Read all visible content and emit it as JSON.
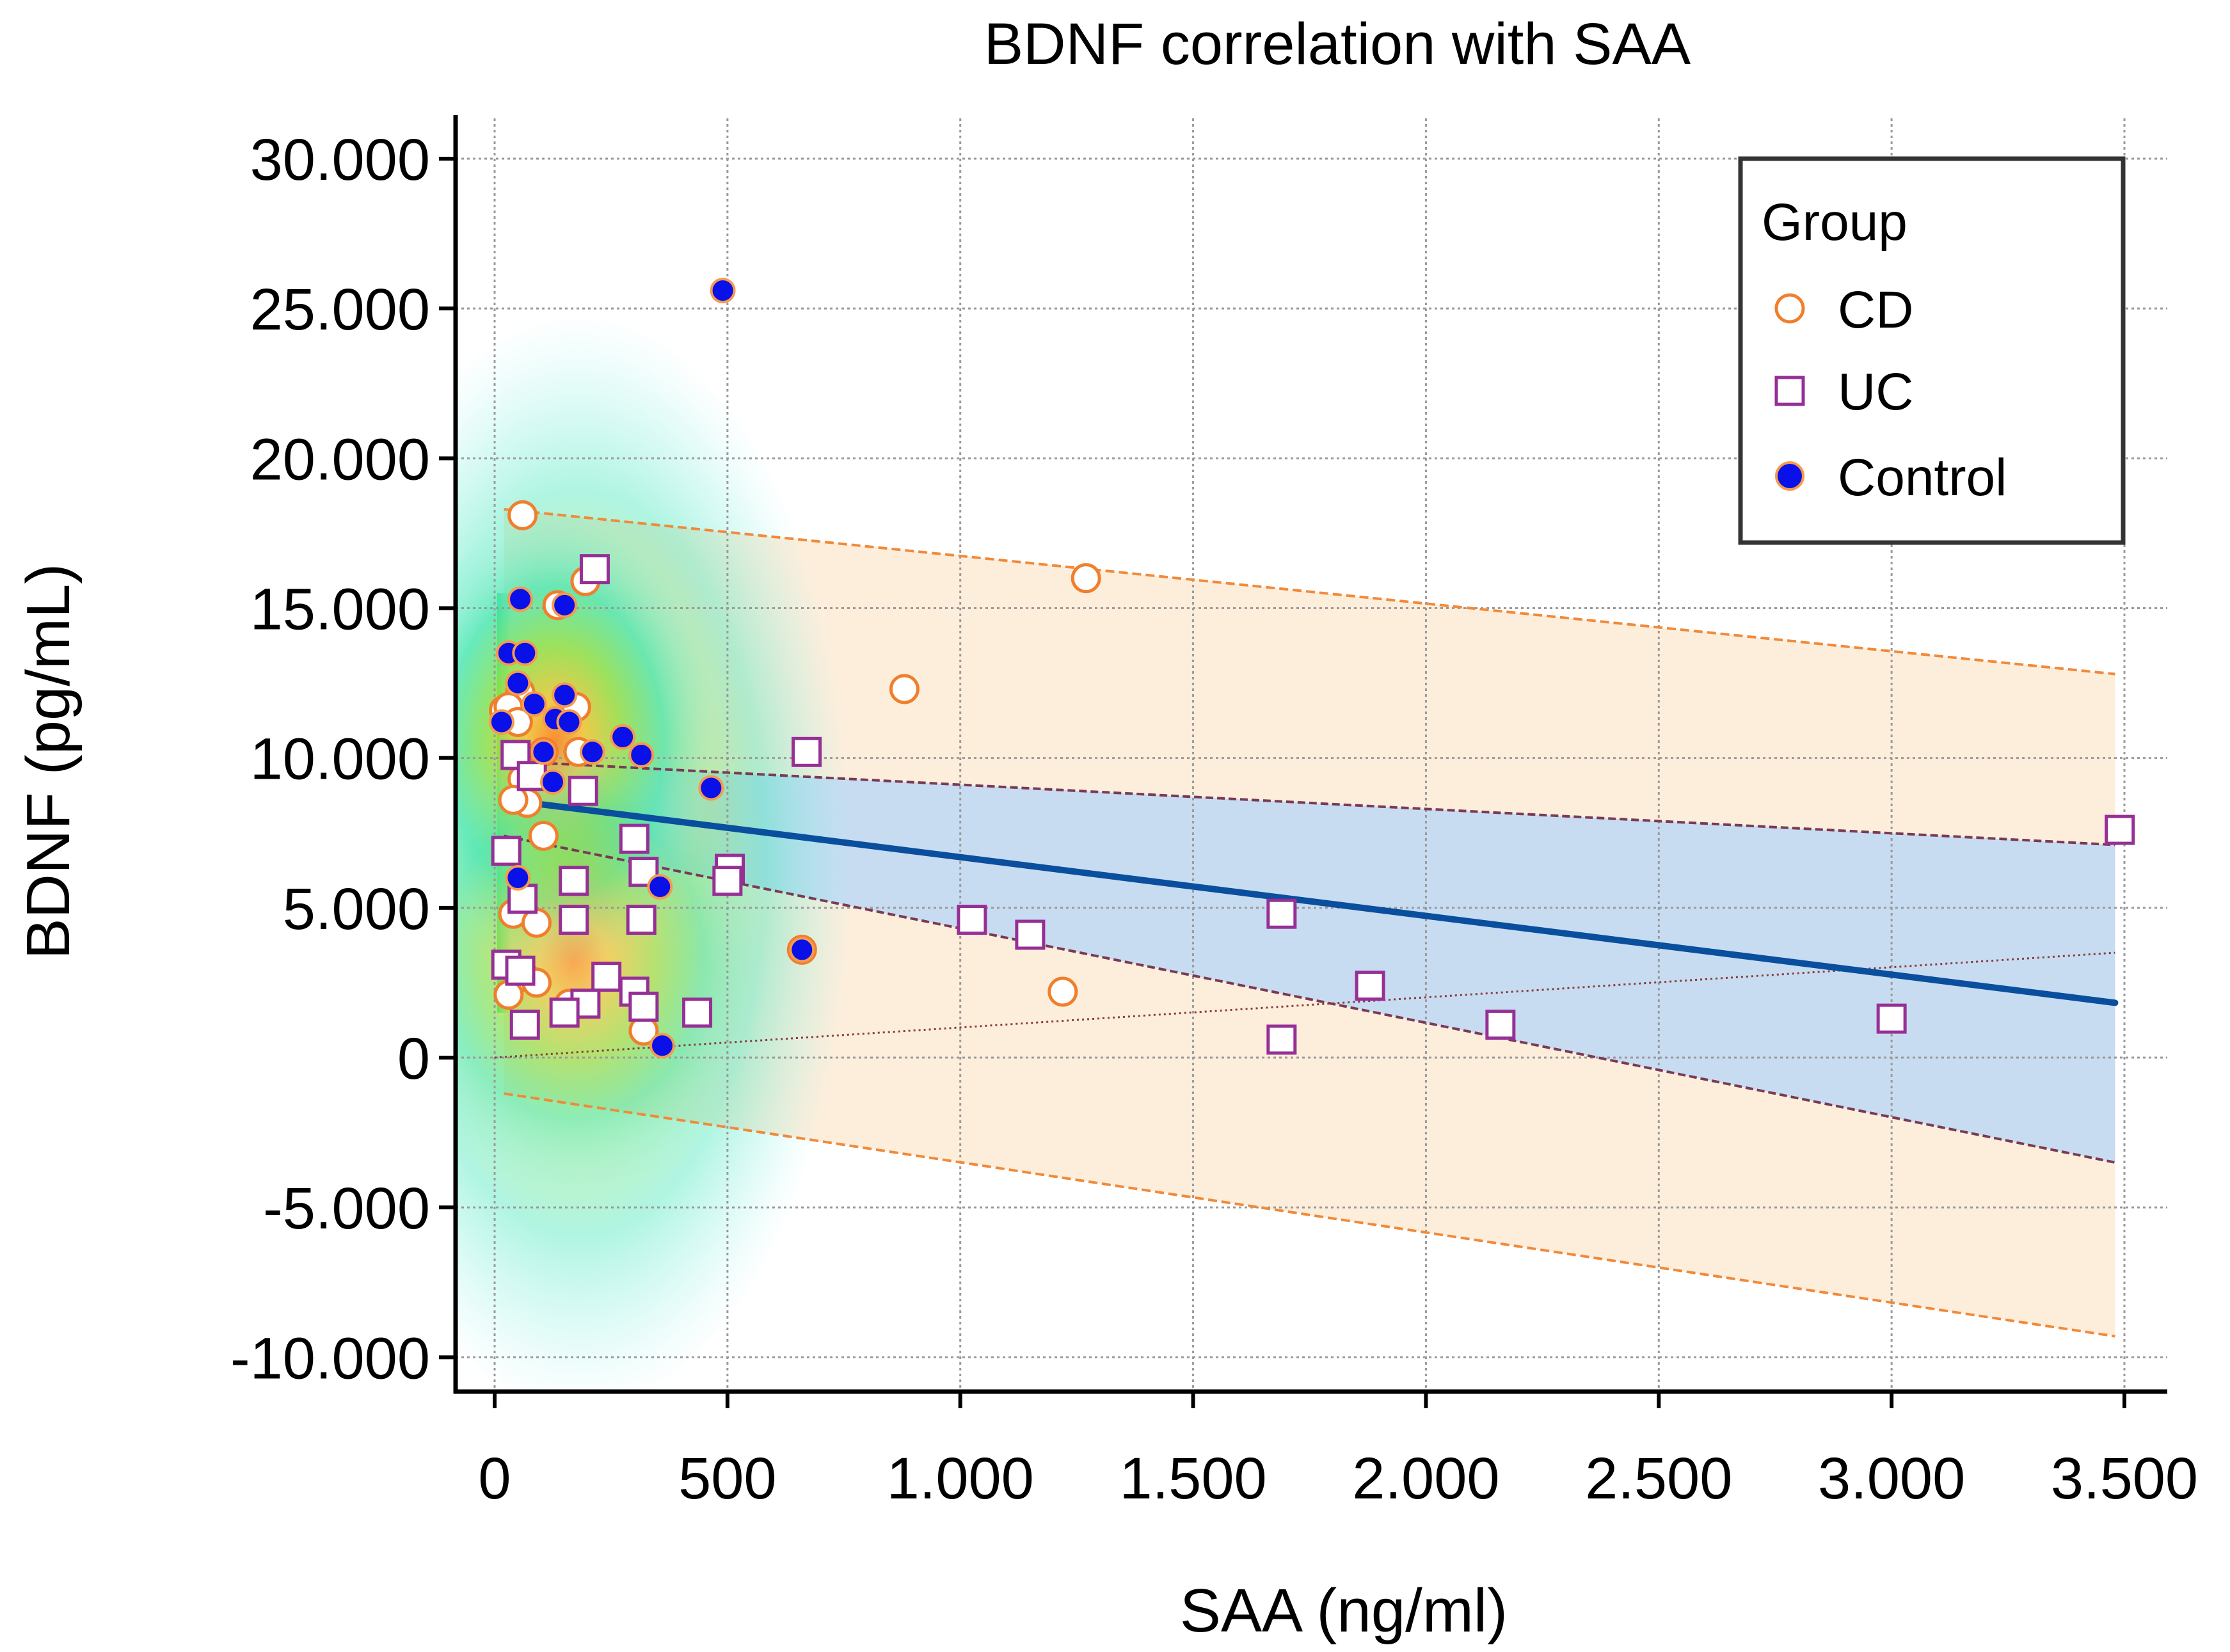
{
  "chart_data": {
    "type": "scatter",
    "title": "BDNF correlation with SAA",
    "xlabel": "SAA (ng/ml)",
    "ylabel": "BDNF (pg/mL)",
    "xlim": [
      -90,
      3600
    ],
    "ylim": [
      -11200,
      31500
    ],
    "x_ticks": [
      0,
      500,
      1000,
      1500,
      2000,
      2500,
      3000,
      3500
    ],
    "x_tick_labels": [
      "0",
      "500",
      "1.000",
      "1.500",
      "2.000",
      "2.500",
      "3.000",
      "3.500"
    ],
    "y_ticks": [
      -10000,
      -5000,
      0,
      5000,
      10000,
      15000,
      20000,
      25000,
      30000
    ],
    "y_tick_labels": [
      "-10.000",
      "-5.000",
      "0",
      "5.000",
      "10.000",
      "15.000",
      "20.000",
      "25.000",
      "30.000"
    ],
    "grid": true,
    "legend": {
      "title": "Group",
      "position": "top-right",
      "entries": [
        "CD",
        "UC",
        "Control"
      ]
    },
    "colors": {
      "cd": "#f07f2d",
      "uc": "#962f96",
      "control_fill": "#0a10e8",
      "control_edge": "#f59a4e",
      "regression": "#0a4e9e",
      "confidence_band": "#c8dcf1",
      "prediction_band": "#fdeedc",
      "prediction_line": "#f08a3a",
      "ci_line": "#7a3a55",
      "reference_line": "#8b3a3a",
      "grid": "#999999"
    },
    "regression": {
      "x_range": [
        20,
        3480
      ],
      "intercept": 8650,
      "slope": -1.96,
      "confidence_band": {
        "x": [
          20,
          3480
        ],
        "lower": [
          7400,
          -3500
        ],
        "upper": [
          9900,
          7100
        ]
      },
      "prediction_band": {
        "x": [
          20,
          3480
        ],
        "lower": [
          -1200,
          -9300
        ],
        "upper": [
          18300,
          12800
        ]
      },
      "reference_line": {
        "x": [
          0,
          3480
        ],
        "y": [
          0,
          3500
        ]
      }
    },
    "series": [
      {
        "name": "CD",
        "marker": "open-circle",
        "points": [
          [
            60,
            18100
          ],
          [
            1270,
            16000
          ],
          [
            880,
            12300
          ],
          [
            195,
            15900
          ],
          [
            135,
            15100
          ],
          [
            55,
            12200
          ],
          [
            20,
            11600
          ],
          [
            30,
            11700
          ],
          [
            50,
            11200
          ],
          [
            175,
            11700
          ],
          [
            105,
            10200
          ],
          [
            180,
            10200
          ],
          [
            60,
            9300
          ],
          [
            70,
            8500
          ],
          [
            40,
            8600
          ],
          [
            105,
            7400
          ],
          [
            40,
            4800
          ],
          [
            90,
            4500
          ],
          [
            65,
            2700
          ],
          [
            90,
            2500
          ],
          [
            30,
            2100
          ],
          [
            160,
            1800
          ],
          [
            320,
            900
          ],
          [
            1220,
            2200
          ],
          [
            660,
            3600
          ]
        ]
      },
      {
        "name": "UC",
        "marker": "open-square",
        "points": [
          [
            215,
            16300
          ],
          [
            670,
            10200
          ],
          [
            45,
            10100
          ],
          [
            80,
            9400
          ],
          [
            190,
            8900
          ],
          [
            25,
            6900
          ],
          [
            300,
            7300
          ],
          [
            170,
            5900
          ],
          [
            505,
            6300
          ],
          [
            500,
            5900
          ],
          [
            320,
            6200
          ],
          [
            60,
            5300
          ],
          [
            170,
            4600
          ],
          [
            315,
            4600
          ],
          [
            1025,
            4600
          ],
          [
            1150,
            4100
          ],
          [
            1690,
            4800
          ],
          [
            1880,
            2400
          ],
          [
            25,
            3100
          ],
          [
            55,
            2900
          ],
          [
            240,
            2700
          ],
          [
            300,
            2200
          ],
          [
            320,
            1700
          ],
          [
            195,
            1800
          ],
          [
            150,
            1500
          ],
          [
            435,
            1500
          ],
          [
            65,
            1100
          ],
          [
            2160,
            1100
          ],
          [
            3000,
            1300
          ],
          [
            1690,
            600
          ],
          [
            3490,
            7600
          ]
        ]
      },
      {
        "name": "Control",
        "marker": "filled-circle",
        "points": [
          [
            490,
            25600
          ],
          [
            55,
            15300
          ],
          [
            150,
            15100
          ],
          [
            30,
            13500
          ],
          [
            65,
            13500
          ],
          [
            50,
            12500
          ],
          [
            150,
            12100
          ],
          [
            85,
            11800
          ],
          [
            130,
            11300
          ],
          [
            160,
            11200
          ],
          [
            15,
            11200
          ],
          [
            275,
            10700
          ],
          [
            105,
            10200
          ],
          [
            210,
            10200
          ],
          [
            315,
            10100
          ],
          [
            125,
            9200
          ],
          [
            465,
            9000
          ],
          [
            50,
            6000
          ],
          [
            355,
            5700
          ],
          [
            660,
            3600
          ],
          [
            360,
            400
          ]
        ]
      }
    ]
  }
}
